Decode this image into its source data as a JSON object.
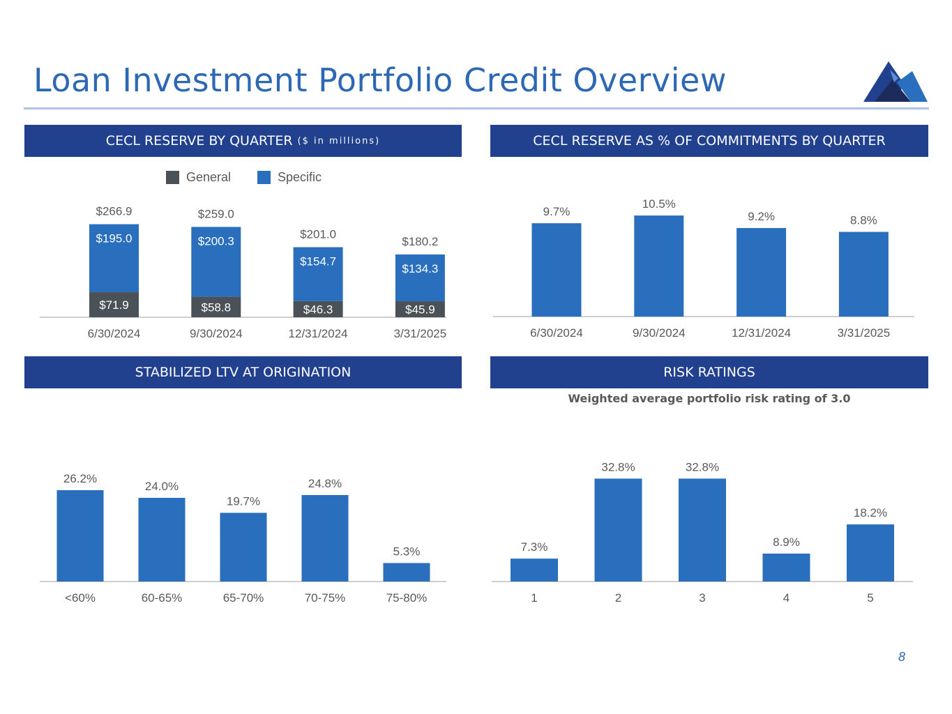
{
  "title": "Loan Investment Portfolio Credit Overview",
  "page_number": "8",
  "colors": {
    "title": "#2c68b4",
    "banner": "#21408d",
    "bar": "#2a6ebe",
    "general": "#4a5257",
    "label": "#595959"
  },
  "banners": {
    "cecl_reserve": {
      "main": "CECL RESERVE BY QUARTER",
      "sub": "($ in millions)"
    },
    "cecl_pct": {
      "main": "CECL RESERVE AS % OF COMMITMENTS BY QUARTER"
    },
    "ltv": {
      "main": "STABILIZED LTV AT ORIGINATION"
    },
    "risk": {
      "main": "RISK RATINGS"
    }
  },
  "risk_subtitle": "Weighted average portfolio risk rating of 3.0",
  "chart_data": [
    {
      "type": "bar",
      "stacked": true,
      "categories": [
        "6/30/2024",
        "9/30/2024",
        "12/31/2024",
        "3/31/2025"
      ],
      "series": [
        {
          "name": "General",
          "values": [
            71.9,
            58.8,
            46.3,
            45.9
          ],
          "labels": [
            "$71.9",
            "$58.8",
            "$46.3",
            "$45.9"
          ],
          "color": "#4a5257"
        },
        {
          "name": "Specific",
          "values": [
            195.0,
            200.3,
            154.7,
            134.3
          ],
          "labels": [
            "$195.0",
            "$200.3",
            "$154.7",
            "$134.3"
          ],
          "color": "#2a6ebe"
        }
      ],
      "totals": [
        266.9,
        259.0,
        201.0,
        180.2
      ],
      "total_labels": [
        "$266.9",
        "$259.0",
        "$201.0",
        "$180.2"
      ],
      "legend": "top-center",
      "grid": false
    },
    {
      "type": "bar",
      "categories": [
        "6/30/2024",
        "9/30/2024",
        "12/31/2024",
        "3/31/2025"
      ],
      "values": [
        9.7,
        10.5,
        9.2,
        8.8
      ],
      "labels": [
        "9.7%",
        "10.5%",
        "9.2%",
        "8.8%"
      ],
      "grid": false
    },
    {
      "type": "bar",
      "categories": [
        "<60%",
        "60-65%",
        "65-70%",
        "70-75%",
        "75-80%"
      ],
      "values": [
        26.2,
        24.0,
        19.7,
        24.8,
        5.3
      ],
      "labels": [
        "26.2%",
        "24.0%",
        "19.7%",
        "24.8%",
        "5.3%"
      ],
      "grid": false
    },
    {
      "type": "bar",
      "categories": [
        "1",
        "2",
        "3",
        "4",
        "5"
      ],
      "values": [
        7.3,
        32.8,
        32.8,
        8.9,
        18.2
      ],
      "labels": [
        "7.3%",
        "32.8%",
        "32.8%",
        "8.9%",
        "18.2%"
      ],
      "grid": false
    }
  ]
}
